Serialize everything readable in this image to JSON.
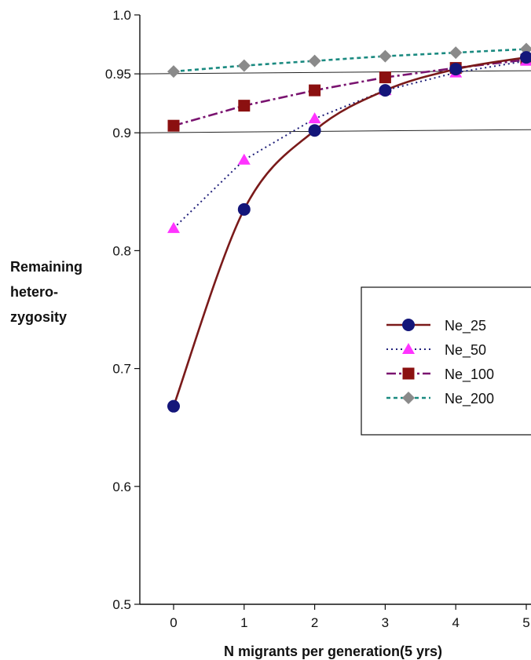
{
  "chart_data": {
    "type": "line",
    "title": "",
    "xlabel": "N migrants per generation(5 yrs)",
    "ylabel": [
      "Remaining",
      "hetero-",
      "zygosity"
    ],
    "x": [
      0,
      1,
      2,
      3,
      4,
      5
    ],
    "xlim": [
      -0.5,
      5.05
    ],
    "ylim": [
      0.5,
      1.0
    ],
    "x_ticks": [
      "0",
      "1",
      "2",
      "3",
      "4",
      "5"
    ],
    "y_ticks": [
      {
        "value": 0.5,
        "label": "0.5"
      },
      {
        "value": 0.6,
        "label": "0.6"
      },
      {
        "value": 0.7,
        "label": "0.7"
      },
      {
        "value": 0.8,
        "label": "0.8"
      },
      {
        "value": 0.9,
        "label": "0.9"
      },
      {
        "value": 0.95,
        "label": "0.95"
      },
      {
        "value": 1.0,
        "label": "1.0"
      }
    ],
    "reference_lines": [
      0.9,
      0.95
    ],
    "legend_position": "right",
    "series": [
      {
        "name": "Ne_25",
        "values": [
          0.668,
          0.835,
          0.902,
          0.936,
          0.954,
          0.964
        ],
        "color": "#7a1a1a",
        "marker": "circle",
        "marker_color": "#14167a",
        "dash": ""
      },
      {
        "name": "Ne_50",
        "values": [
          0.819,
          0.877,
          0.912,
          0.936,
          0.951,
          0.961
        ],
        "color": "#20207a",
        "marker": "triangle",
        "marker_color": "#ff33ff",
        "dash": "2,4"
      },
      {
        "name": "Ne_100",
        "values": [
          0.906,
          0.923,
          0.936,
          0.947,
          0.955,
          0.962
        ],
        "color": "#7a1470",
        "marker": "square",
        "marker_color": "#8b1010",
        "dash": "12,4,3,4"
      },
      {
        "name": "Ne_200",
        "values": [
          0.952,
          0.957,
          0.961,
          0.965,
          0.968,
          0.971
        ],
        "color": "#1a8a80",
        "marker": "diamond",
        "marker_color": "#8a8a8a",
        "dash": "5,4"
      }
    ]
  }
}
